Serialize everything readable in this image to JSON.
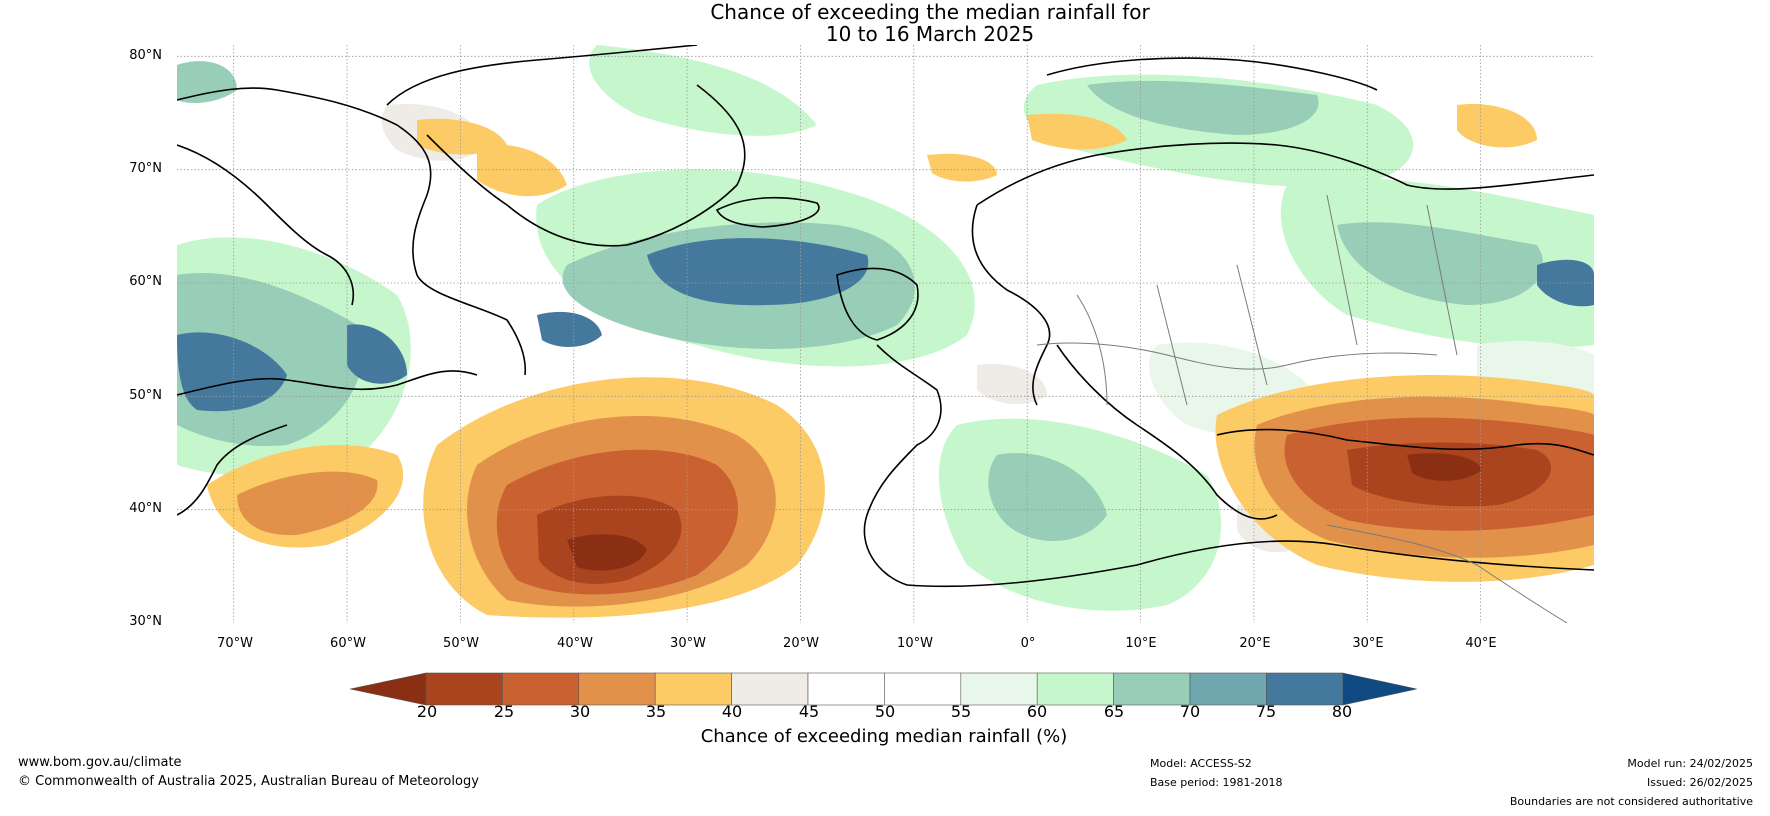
{
  "title": {
    "line1": "Chance of exceeding the median rainfall for",
    "line2": "10 to 16 March 2025"
  },
  "axes": {
    "latitude_labels": [
      "80°N",
      "70°N",
      "60°N",
      "50°N",
      "40°N",
      "30°N"
    ],
    "longitude_labels": [
      "70°W",
      "60°W",
      "50°W",
      "40°W",
      "30°W",
      "20°W",
      "10°W",
      "0°",
      "10°E",
      "20°E",
      "30°E",
      "40°E"
    ],
    "lon_range": [
      -75,
      50
    ],
    "lat_range": [
      30,
      81
    ]
  },
  "colorbar": {
    "label": "Chance of exceeding median rainfall (%)",
    "ticks": [
      "20",
      "25",
      "30",
      "35",
      "40",
      "45",
      "50",
      "55",
      "60",
      "65",
      "70",
      "75",
      "80"
    ],
    "colors": [
      "#8b2f14",
      "#a9441e",
      "#c96230",
      "#e2914a",
      "#fdcb66",
      "#efebe7",
      "#ffffff",
      "#ffffff",
      "#e8f7e9",
      "#c6f7cc",
      "#98cdb7",
      "#70a6ad",
      "#44799d",
      "#104a82"
    ]
  },
  "footer": {
    "website": "www.bom.gov.au/climate",
    "copyright": "© Commonwealth of Australia 2025, Australian Bureau of Meteorology",
    "model": "Model: ACCESS-S2",
    "base_period": "Base period: 1981-2018",
    "model_run": "Model run: 24/02/2025",
    "issued": "Issued: 26/02/2025",
    "disclaimer": "Boundaries are not considered authoritative"
  }
}
